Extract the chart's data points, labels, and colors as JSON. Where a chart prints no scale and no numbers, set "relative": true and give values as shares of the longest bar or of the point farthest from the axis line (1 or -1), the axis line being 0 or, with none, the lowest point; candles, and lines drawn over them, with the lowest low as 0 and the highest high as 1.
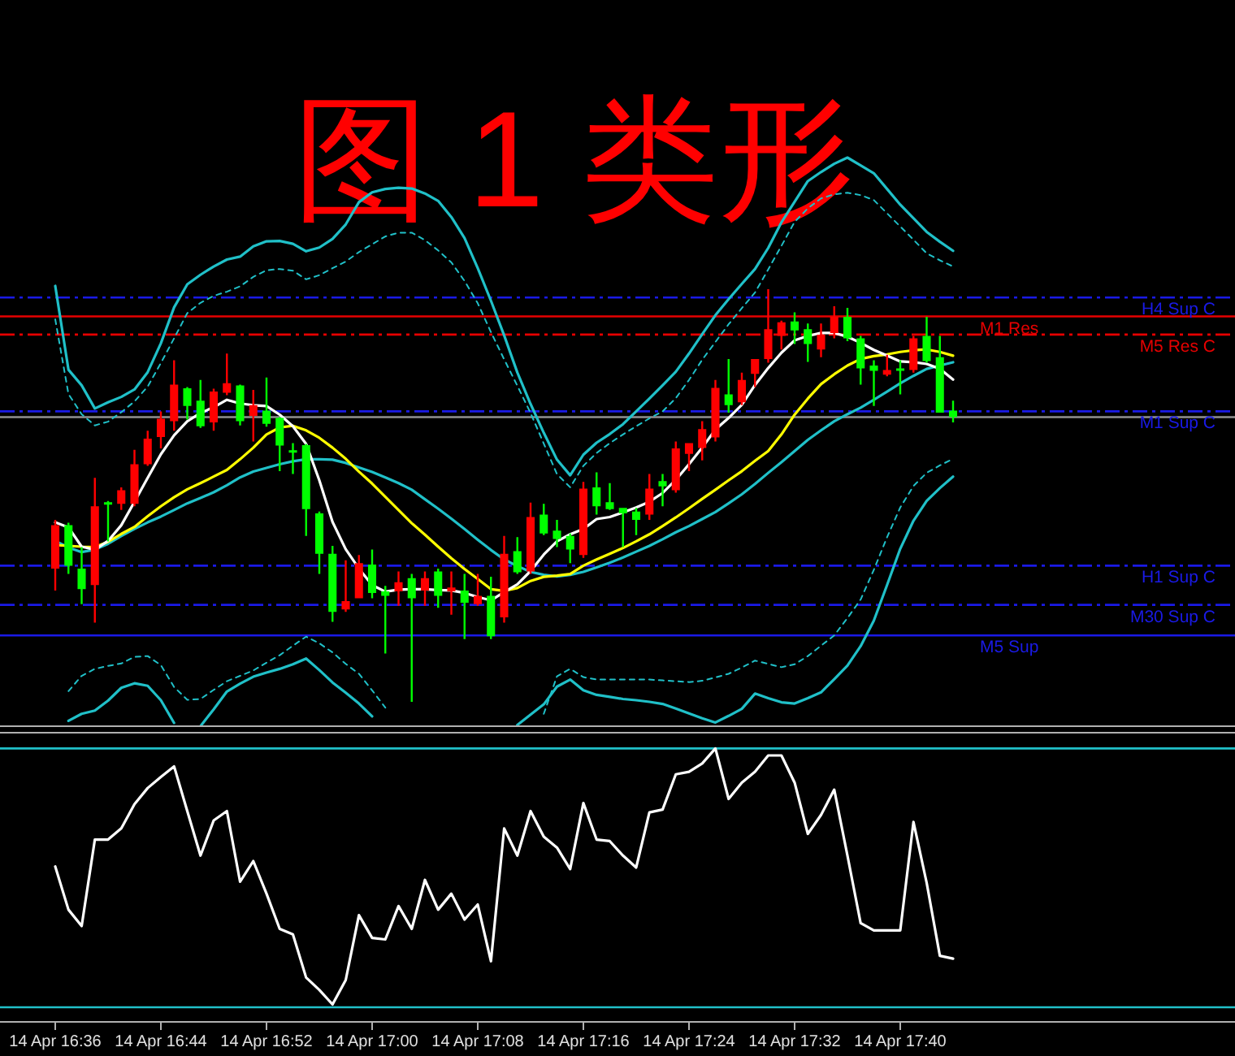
{
  "chart_data": [
    {
      "type": "candlestick",
      "title": "图 1 类形",
      "relative": true,
      "categories": [
        null,
        null,
        null,
        null,
        null,
        null,
        null,
        null,
        null,
        null,
        null,
        null,
        null,
        null,
        null,
        null,
        null,
        null,
        null,
        null,
        null,
        null,
        null,
        null,
        null,
        null,
        null,
        null,
        null,
        null,
        null,
        null,
        null,
        null,
        null,
        null,
        null,
        null,
        null,
        null,
        null,
        null,
        null,
        null,
        null,
        null,
        null,
        null,
        null,
        null,
        null,
        null,
        null,
        null,
        null,
        null,
        null,
        null,
        null,
        null,
        null,
        null,
        null,
        null,
        null,
        null,
        null,
        null,
        null
      ],
      "ohlc": [
        [
          0.323,
          0.441,
          0.27,
          0.428
        ],
        [
          0.428,
          0.434,
          0.31,
          0.33
        ],
        [
          0.323,
          0.375,
          0.237,
          0.273
        ],
        [
          0.283,
          0.543,
          0.192,
          0.474
        ],
        [
          0.484,
          0.487,
          0.389,
          0.478
        ],
        [
          0.48,
          0.52,
          0.465,
          0.513
        ],
        [
          0.48,
          0.611,
          0.474,
          0.576
        ],
        [
          0.576,
          0.657,
          0.572,
          0.638
        ],
        [
          0.642,
          0.704,
          0.614,
          0.686
        ],
        [
          0.68,
          0.828,
          0.657,
          0.769
        ],
        [
          0.76,
          0.763,
          0.684,
          0.717
        ],
        [
          0.73,
          0.78,
          0.664,
          0.668
        ],
        [
          0.677,
          0.759,
          0.657,
          0.752
        ],
        [
          0.749,
          0.844,
          0.743,
          0.772
        ],
        [
          0.767,
          0.769,
          0.67,
          0.68
        ],
        [
          0.693,
          0.756,
          0.631,
          0.719
        ],
        [
          0.706,
          0.786,
          0.667,
          0.674
        ],
        [
          0.688,
          0.69,
          0.559,
          0.621
        ],
        [
          0.61,
          0.627,
          0.552,
          0.604
        ],
        [
          0.622,
          0.625,
          0.402,
          0.467
        ],
        [
          0.457,
          0.461,
          0.31,
          0.359
        ],
        [
          0.359,
          0.378,
          0.194,
          0.218
        ],
        [
          0.224,
          0.343,
          0.218,
          0.244
        ],
        [
          0.251,
          0.356,
          0.251,
          0.336
        ],
        [
          0.333,
          0.369,
          0.251,
          0.264
        ],
        [
          0.268,
          0.281,
          0.117,
          0.257
        ],
        [
          0.268,
          0.316,
          0.233,
          0.29
        ],
        [
          0.3,
          0.31,
          0,
          0.251
        ],
        [
          0.27,
          0.316,
          0.233,
          0.3
        ],
        [
          0.316,
          0.323,
          0.228,
          0.257
        ],
        [
          0.268,
          0.316,
          0.211,
          0.277
        ],
        [
          0.27,
          0.31,
          0.152,
          0.24
        ],
        [
          0.237,
          0.31,
          0.233,
          0.257
        ],
        [
          0.257,
          0.303,
          0.152,
          0.159
        ],
        [
          0.205,
          0.402,
          0.192,
          0.359
        ],
        [
          0.365,
          0.399,
          0.31,
          0.314
        ],
        [
          0.316,
          0.483,
          0.31,
          0.448
        ],
        [
          0.454,
          0.48,
          0.404,
          0.408
        ],
        [
          0.415,
          0.441,
          0.375,
          0.395
        ],
        [
          0.402,
          0.408,
          0.336,
          0.369
        ],
        [
          0.356,
          0.533,
          0.349,
          0.517
        ],
        [
          0.52,
          0.556,
          0.454,
          0.474
        ],
        [
          0.484,
          0.53,
          0.465,
          0.467
        ],
        [
          0.47,
          0.47,
          0.375,
          0.457
        ],
        [
          0.461,
          0.47,
          0.404,
          0.441
        ],
        [
          0.454,
          0.552,
          0.441,
          0.517
        ],
        [
          0.535,
          0.552,
          0.474,
          0.522
        ],
        [
          0.513,
          0.631,
          0.507,
          0.614
        ],
        [
          0.601,
          0.627,
          0.559,
          0.627
        ],
        [
          0.615,
          0.68,
          0.585,
          0.661
        ],
        [
          0.641,
          0.78,
          0.631,
          0.761
        ],
        [
          0.745,
          0.831,
          0.701,
          0.719
        ],
        [
          0.726,
          0.798,
          0.719,
          0.78
        ],
        [
          0.795,
          0.831,
          0.763,
          0.831
        ],
        [
          0.831,
          1,
          0.822,
          0.903
        ],
        [
          0.887,
          0.924,
          0.854,
          0.92
        ],
        [
          0.922,
          0.944,
          0.867,
          0.9
        ],
        [
          0.903,
          0.917,
          0.824,
          0.867
        ],
        [
          0.854,
          0.917,
          0.835,
          0.89
        ],
        [
          0.894,
          0.959,
          0.881,
          0.933
        ],
        [
          0.933,
          0.955,
          0.874,
          0.881
        ],
        [
          0.881,
          0.887,
          0.769,
          0.808
        ],
        [
          0.815,
          0.828,
          0.717,
          0.802
        ],
        [
          0.793,
          0.841,
          0.789,
          0.804
        ],
        [
          0.808,
          0.828,
          0.745,
          0.802
        ],
        [
          0.804,
          0.887,
          0.798,
          0.881
        ],
        [
          0.887,
          0.933,
          0.822,
          0.826
        ],
        [
          0.835,
          0.887,
          0.701,
          0.701
        ],
        [
          0.706,
          0.73,
          0.677,
          0.69
        ]
      ],
      "colors": [
        "#ff0000",
        "#00ff00",
        "#00ff00",
        "#ff0000",
        "#00ff00",
        "#ff0000",
        "#ff0000",
        "#ff0000",
        "#ff0000",
        "#ff0000",
        "#00ff00",
        "#00ff00",
        "#ff0000",
        "#ff0000",
        "#00ff00",
        "#ff0000",
        "#00ff00",
        "#00ff00",
        "#00ff00",
        "#00ff00",
        "#00ff00",
        "#00ff00",
        "#ff0000",
        "#ff0000",
        "#00ff00",
        "#00ff00",
        "#ff0000",
        "#00ff00",
        "#ff0000",
        "#00ff00",
        "#ff0000",
        "#00ff00",
        "#ff0000",
        "#00ff00",
        "#ff0000",
        "#00ff00",
        "#ff0000",
        "#00ff00",
        "#00ff00",
        "#00ff00",
        "#ff0000",
        "#00ff00",
        "#00ff00",
        "#00ff00",
        "#00ff00",
        "#ff0000",
        "#00ff00",
        "#ff0000",
        "#ff0000",
        "#ff0000",
        "#ff0000",
        "#00ff00",
        "#ff0000",
        "#ff0000",
        "#ff0000",
        "#ff0000",
        "#00ff00",
        "#00ff00",
        "#ff0000",
        "#ff0000",
        "#00ff00",
        "#00ff00",
        "#00ff00",
        "#ff0000",
        "#00ff00",
        "#ff0000",
        "#00ff00",
        "#00ff00",
        "#00ff00"
      ],
      "series": [
        {
          "type": "line",
          "color": "#20c0c8",
          "values": [
            1.008,
            0.805,
            0.767,
            0.711,
            0.726,
            0.739,
            0.757,
            0.799,
            0.869,
            0.956,
            1.012,
            1.035,
            1.055,
            1.072,
            1.079,
            1.104,
            1.116,
            1.117,
            1.11,
            1.092,
            1.101,
            1.122,
            1.157,
            1.211,
            1.235,
            1.243,
            1.246,
            1.244,
            1.232,
            1.214,
            1.175,
            1.124,
            1.051,
            0.972,
            0.888,
            0.798,
            0.722,
            0.652,
            0.587,
            0.549,
            0.599,
            0.628,
            0.649,
            0.673,
            0.704,
            0.735,
            0.767,
            0.8,
            0.844,
            0.891,
            0.937,
            0.976,
            1.013,
            1.049,
            1.1,
            1.162,
            1.212,
            1.262,
            1.284,
            1.304,
            1.319,
            1.3,
            1.281,
            1.243,
            1.205,
            1.172,
            1.139,
            1.115,
            1.093
          ]
        },
        {
          "type": "line",
          "color": "#20c0c8",
          "line_style": "dashed",
          "values": [
            0.927,
            0.746,
            0.697,
            0.67,
            0.679,
            0.702,
            0.728,
            0.764,
            0.821,
            0.881,
            0.942,
            0.967,
            0.984,
            0.994,
            1.007,
            1.03,
            1.046,
            1.049,
            1.045,
            1.024,
            1.034,
            1.051,
            1.067,
            1.09,
            1.109,
            1.128,
            1.137,
            1.137,
            1.119,
            1.094,
            1.065,
            1.02,
            0.966,
            0.896,
            0.83,
            0.766,
            0.7,
            0.626,
            0.552,
            0.52,
            0.572,
            0.603,
            0.627,
            0.648,
            0.668,
            0.687,
            0.704,
            0.736,
            0.78,
            0.829,
            0.872,
            0.915,
            0.954,
            0.992,
            1.048,
            1.105,
            1.163,
            1.196,
            1.22,
            1.23,
            1.234,
            1.228,
            1.216,
            1.184,
            1.152,
            1.12,
            1.087,
            1.07,
            1.055
          ]
        },
        {
          "type": "line",
          "color": "#20c0c8",
          "line_style": "dashed",
          "values": [
            null,
            0.026,
            0.063,
            0.08,
            0.087,
            0.093,
            0.109,
            0.111,
            0.089,
            0.036,
            0.005,
            0.007,
            0.029,
            0.05,
            0.063,
            0.076,
            0.095,
            0.113,
            0.136,
            0.158,
            0.142,
            0.12,
            0.092,
            0.068,
            0.028,
            -0.014,
            null,
            null,
            null,
            null,
            null,
            null,
            null,
            null,
            null,
            null,
            null,
            -0.029,
            0.062,
            0.08,
            0.06,
            0.054,
            0.054,
            0.054,
            0.054,
            0.054,
            0.052,
            0.05,
            0.048,
            0.051,
            0.059,
            0.068,
            0.083,
            0.1,
            0.092,
            0.084,
            0.091,
            0.111,
            0.136,
            0.161,
            0.203,
            0.248,
            0.32,
            0.399,
            0.471,
            0.523,
            0.555,
            0.573,
            0.589
          ]
        },
        {
          "type": "line",
          "color": "#20c0c8",
          "values": [
            null,
            -0.046,
            -0.029,
            -0.021,
            0.003,
            0.034,
            0.045,
            0.039,
            0.004,
            -0.051,
            null,
            -0.059,
            -0.018,
            0.025,
            0.044,
            0.061,
            0.071,
            0.08,
            0.091,
            0.105,
            0.077,
            0.047,
            0.022,
            -0.004,
            -0.035,
            null,
            null,
            null,
            null,
            null,
            null,
            null,
            null,
            null,
            null,
            -0.056,
            -0.031,
            -0.006,
            0.037,
            0.054,
            0.028,
            0.017,
            0.012,
            0.007,
            0.004,
            0,
            -0.005,
            -0.016,
            -0.028,
            -0.04,
            -0.05,
            -0.034,
            -0.017,
            0.02,
            0.009,
            -0.001,
            -0.004,
            0.009,
            0.023,
            0.055,
            0.088,
            0.135,
            0.197,
            0.283,
            0.371,
            0.439,
            0.487,
            0.518,
            0.546
          ]
        },
        {
          "type": "line",
          "color": "#20c0c8",
          "values": [
            0.39,
            0.374,
            0.363,
            0.369,
            0.383,
            0.402,
            0.419,
            0.435,
            0.449,
            0.465,
            0.481,
            0.494,
            0.508,
            0.525,
            0.544,
            0.558,
            0.567,
            0.576,
            0.583,
            0.588,
            0.588,
            0.587,
            0.579,
            0.568,
            0.557,
            0.544,
            0.53,
            0.514,
            0.491,
            0.468,
            0.444,
            0.419,
            0.393,
            0.368,
            0.345,
            0.329,
            0.315,
            0.308,
            0.304,
            0.308,
            0.315,
            0.326,
            0.337,
            0.35,
            0.364,
            0.378,
            0.394,
            0.411,
            0.426,
            0.443,
            0.46,
            0.481,
            0.503,
            0.528,
            0.555,
            0.581,
            0.608,
            0.635,
            0.658,
            0.68,
            0.697,
            0.713,
            0.732,
            0.752,
            0.772,
            0.79,
            0.807,
            0.815,
            0.823
          ]
        },
        {
          "type": "line",
          "color": "#ffff00",
          "values": [
            0.38,
            0.378,
            0.376,
            0.375,
            0.388,
            0.407,
            0.424,
            0.45,
            0.474,
            0.496,
            0.515,
            0.53,
            0.546,
            0.562,
            0.588,
            0.616,
            0.648,
            0.665,
            0.669,
            0.658,
            0.64,
            0.616,
            0.589,
            0.558,
            0.529,
            0.497,
            0.465,
            0.433,
            0.405,
            0.376,
            0.348,
            0.322,
            0.298,
            0.273,
            0.269,
            0.276,
            0.293,
            0.303,
            0.306,
            0.31,
            0.33,
            0.345,
            0.359,
            0.373,
            0.389,
            0.406,
            0.426,
            0.447,
            0.469,
            0.492,
            0.514,
            0.537,
            0.559,
            0.584,
            0.608,
            0.648,
            0.696,
            0.735,
            0.77,
            0.794,
            0.815,
            0.831,
            0.838,
            0.842,
            0.848,
            0.852,
            0.854,
            0.848,
            0.839
          ]
        },
        {
          "type": "line",
          "color": "#ffffff",
          "values": [
            0.435,
            0.423,
            0.376,
            0.369,
            0.39,
            0.428,
            0.485,
            0.543,
            0.6,
            0.646,
            0.68,
            0.7,
            0.714,
            0.732,
            0.723,
            0.719,
            0.717,
            0.696,
            0.668,
            0.625,
            0.537,
            0.436,
            0.37,
            0.323,
            0.283,
            0.267,
            0.272,
            0.273,
            0.273,
            0.271,
            0.27,
            0.264,
            0.254,
            0.246,
            0.266,
            0.285,
            0.317,
            0.357,
            0.389,
            0.406,
            0.419,
            0.443,
            0.448,
            0.459,
            0.471,
            0.485,
            0.506,
            0.538,
            0.576,
            0.616,
            0.66,
            0.688,
            0.72,
            0.768,
            0.809,
            0.846,
            0.876,
            0.887,
            0.894,
            0.894,
            0.885,
            0.87,
            0.853,
            0.839,
            0.825,
            0.823,
            0.819,
            0.807,
            0.781
          ]
        }
      ],
      "ref_lines": [
        {
          "axis": "y",
          "value": 0.98,
          "label": "H4 Sup C",
          "color": "#1a1ae6",
          "line_style": "dashdot"
        },
        {
          "axis": "y",
          "value": 0.934,
          "label": "M1 Res",
          "color": "#e60000",
          "line_style": "solid"
        },
        {
          "axis": "y",
          "value": 0.89,
          "label": "M5 Res C",
          "color": "#e60000",
          "line_style": "dashdot"
        },
        {
          "axis": "y",
          "value": 0.704,
          "label": "M1 Sup C",
          "color": "#1a1ae6",
          "line_style": "dashdot"
        },
        {
          "axis": "y",
          "value": 0.69,
          "color": "#909090",
          "line_style": "solid"
        },
        {
          "axis": "y",
          "value": 0.33,
          "label": "H1 Sup C",
          "color": "#1a1ae6",
          "line_style": "dashdot"
        },
        {
          "axis": "y",
          "value": 0.235,
          "label": "M30 Sup C",
          "color": "#1a1ae6",
          "line_style": "dashdot"
        },
        {
          "axis": "y",
          "value": 0.161,
          "label": "M5 Sup",
          "color": "#1a1ae6",
          "line_style": "solid"
        }
      ]
    },
    {
      "type": "line",
      "relative": true,
      "categories": [
        "14 Apr 16:36",
        null,
        null,
        null,
        null,
        null,
        null,
        null,
        "14 Apr 16:44",
        null,
        null,
        null,
        null,
        null,
        null,
        null,
        "14 Apr 16:52",
        null,
        null,
        null,
        null,
        null,
        null,
        null,
        "14 Apr 17:00",
        null,
        null,
        null,
        null,
        null,
        null,
        null,
        "14 Apr 17:08",
        null,
        null,
        null,
        null,
        null,
        null,
        null,
        "14 Apr 17:16",
        null,
        null,
        null,
        null,
        null,
        null,
        null,
        "14 Apr 17:24",
        null,
        null,
        null,
        null,
        null,
        null,
        null,
        "14 Apr 17:32",
        null,
        null,
        null,
        null,
        null,
        null,
        null,
        "14 Apr 17:40",
        null,
        null,
        null,
        null
      ],
      "series": [
        {
          "color": "#ffffff",
          "values": [
            0.544,
            0.377,
            0.314,
            0.648,
            0.648,
            0.691,
            0.785,
            0.847,
            0.89,
            0.931,
            0.758,
            0.586,
            0.722,
            0.758,
            0.485,
            0.565,
            0.439,
            0.303,
            0.282,
            0.115,
            0.067,
            0.011,
            0.105,
            0.356,
            0.268,
            0.262,
            0.391,
            0.303,
            0.492,
            0.377,
            0.439,
            0.339,
            0.397,
            0.178,
            0.691,
            0.586,
            0.758,
            0.659,
            0.617,
            0.534,
            0.789,
            0.648,
            0.642,
            0.586,
            0.54,
            0.753,
            0.764,
            0.9,
            0.91,
            0.942,
            1,
            0.805,
            0.868,
            0.91,
            0.973,
            0.973,
            0.868,
            0.67,
            0.743,
            0.841,
            0.586,
            0.325,
            0.297,
            0.297,
            0.297,
            0.716,
            0.481,
            0.199,
            0.188
          ]
        }
      ],
      "ref_lines": [
        {
          "axis": "y",
          "value": 1,
          "color": "#20c0c8",
          "line_style": "solid"
        },
        {
          "axis": "y",
          "value": 0,
          "color": "#20c0c8",
          "line_style": "solid"
        }
      ]
    }
  ]
}
